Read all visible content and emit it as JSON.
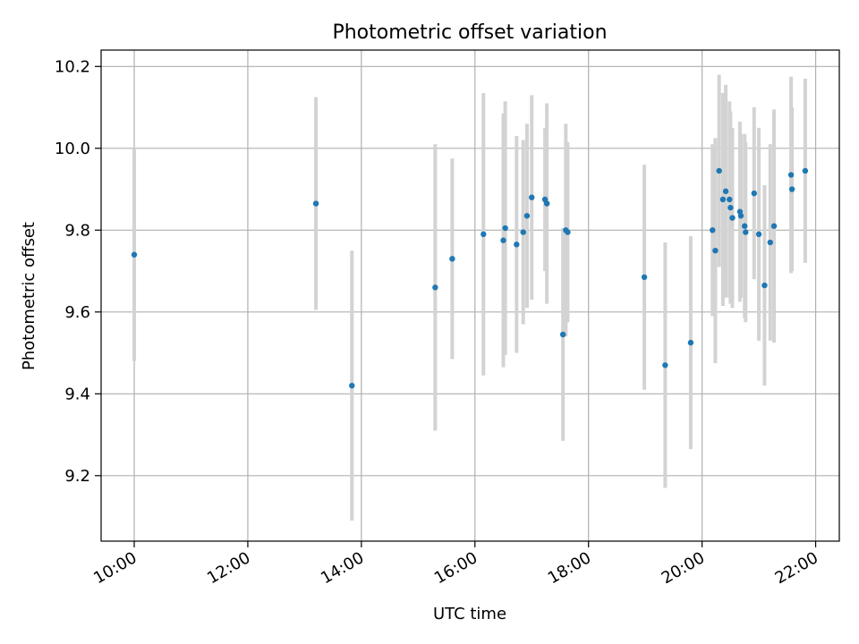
{
  "chart_data": {
    "type": "scatter",
    "title": "Photometric offset variation",
    "xlabel": "UTC time",
    "ylabel": "Photometric offset",
    "xlim": [
      "09:25",
      "22:25"
    ],
    "ylim": [
      9.04,
      10.24
    ],
    "x_ticks": [
      "10:00",
      "12:00",
      "14:00",
      "16:00",
      "18:00",
      "20:00",
      "22:00"
    ],
    "y_ticks": [
      9.2,
      9.4,
      9.6,
      9.8,
      10.0,
      10.2
    ],
    "grid": true,
    "colors": {
      "point": "#1f77b4",
      "errorbar": "#d3d3d3",
      "grid": "#b0b0b0"
    },
    "points": [
      {
        "x": "10:00",
        "y": 9.74,
        "err": 0.26
      },
      {
        "x": "13:12",
        "y": 9.865,
        "err": 0.26
      },
      {
        "x": "13:50",
        "y": 9.42,
        "err": 0.33
      },
      {
        "x": "15:18",
        "y": 9.66,
        "err": 0.35
      },
      {
        "x": "15:36",
        "y": 9.73,
        "err": 0.245
      },
      {
        "x": "16:09",
        "y": 9.79,
        "err": 0.345
      },
      {
        "x": "16:30",
        "y": 9.775,
        "err": 0.31
      },
      {
        "x": "16:32",
        "y": 9.805,
        "err": 0.31
      },
      {
        "x": "16:44",
        "y": 9.765,
        "err": 0.265
      },
      {
        "x": "16:51",
        "y": 9.795,
        "err": 0.225
      },
      {
        "x": "16:55",
        "y": 9.835,
        "err": 0.225
      },
      {
        "x": "17:00",
        "y": 9.88,
        "err": 0.25
      },
      {
        "x": "17:14",
        "y": 9.875,
        "err": 0.175
      },
      {
        "x": "17:16",
        "y": 9.865,
        "err": 0.245
      },
      {
        "x": "17:33",
        "y": 9.545,
        "err": 0.26
      },
      {
        "x": "17:36",
        "y": 9.8,
        "err": 0.26
      },
      {
        "x": "17:38",
        "y": 9.795,
        "err": 0.22
      },
      {
        "x": "18:59",
        "y": 9.685,
        "err": 0.275
      },
      {
        "x": "19:21",
        "y": 9.47,
        "err": 0.3
      },
      {
        "x": "19:48",
        "y": 9.525,
        "err": 0.26
      },
      {
        "x": "20:11",
        "y": 9.8,
        "err": 0.21
      },
      {
        "x": "20:14",
        "y": 9.75,
        "err": 0.275
      },
      {
        "x": "20:18",
        "y": 9.945,
        "err": 0.235
      },
      {
        "x": "20:22",
        "y": 9.875,
        "err": 0.26
      },
      {
        "x": "20:25",
        "y": 9.895,
        "err": 0.26
      },
      {
        "x": "20:29",
        "y": 9.875,
        "err": 0.24
      },
      {
        "x": "20:30",
        "y": 9.855,
        "err": 0.235
      },
      {
        "x": "20:32",
        "y": 9.83,
        "err": 0.22
      },
      {
        "x": "20:40",
        "y": 9.845,
        "err": 0.22
      },
      {
        "x": "20:41",
        "y": 9.835,
        "err": 0.2
      },
      {
        "x": "20:45",
        "y": 9.81,
        "err": 0.225
      },
      {
        "x": "20:46",
        "y": 9.795,
        "err": 0.22
      },
      {
        "x": "20:55",
        "y": 9.89,
        "err": 0.21
      },
      {
        "x": "21:00",
        "y": 9.79,
        "err": 0.26
      },
      {
        "x": "21:06",
        "y": 9.665,
        "err": 0.245
      },
      {
        "x": "21:12",
        "y": 9.77,
        "err": 0.24
      },
      {
        "x": "21:16",
        "y": 9.81,
        "err": 0.285
      },
      {
        "x": "21:34",
        "y": 9.935,
        "err": 0.24
      },
      {
        "x": "21:35",
        "y": 9.9,
        "err": 0.2
      },
      {
        "x": "21:49",
        "y": 9.945,
        "err": 0.225
      }
    ]
  }
}
